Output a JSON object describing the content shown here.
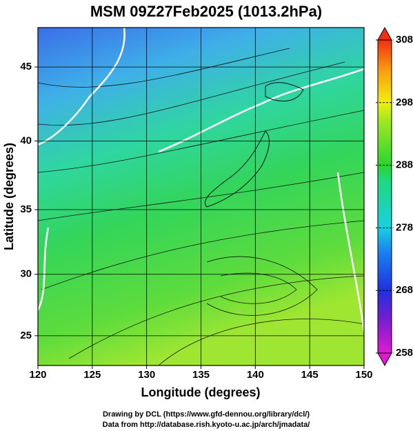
{
  "chart_data": {
    "type": "map",
    "title": "MSM 09Z27Feb2025 (1013.2hPa)",
    "x_label": "Longitude (degrees)",
    "y_label": "Latitude  (degrees)",
    "projection": "mercator",
    "xlim": [
      120,
      150
    ],
    "xticks": [
      120,
      125,
      130,
      135,
      140,
      145,
      150
    ],
    "ylim": [
      22.5,
      47.5
    ],
    "yticks": [
      25,
      30,
      35,
      40,
      45
    ],
    "grid": true,
    "colorbar": {
      "clim": [
        258,
        308
      ],
      "ticks": [
        258,
        268,
        278,
        288,
        298,
        308
      ]
    },
    "footer": [
      "Drawing by DCL (https://www.gfd-dennou.org/library/dcl/)",
      "Data from http://database.rish.kyoto-u.ac.jp/arch/jmadata/"
    ]
  }
}
